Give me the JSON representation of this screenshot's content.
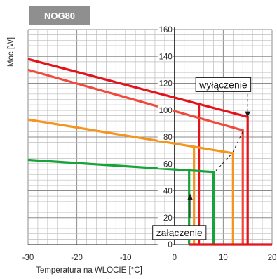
{
  "chart_data": {
    "type": "line",
    "title": "NOG80",
    "xlabel": "Temperatura na WLOCIE  [°C]",
    "ylabel": "Moc [W]",
    "xlim": [
      -30,
      20
    ],
    "ylim": [
      0,
      160
    ],
    "xticks": [
      -30,
      -20,
      -10,
      0,
      10,
      20
    ],
    "yticks": [
      0,
      20,
      40,
      60,
      80,
      100,
      120,
      140,
      160
    ],
    "xtick_labels": [
      "-30",
      "-20",
      "-10",
      "0",
      "10",
      "20"
    ],
    "ytick_labels": [
      "0",
      "20",
      "40",
      "60",
      "80",
      "100",
      "120",
      "140",
      "160"
    ],
    "grid": true,
    "series": [
      {
        "color": "#e2131a",
        "on": [
          [
            -30,
            138
          ],
          [
            15,
            95
          ]
        ],
        "drop_x": 15,
        "lower_drop_x": 5,
        "lower_drop_y": 104
      },
      {
        "color": "#ef4a3c",
        "on": [
          [
            -30,
            130
          ],
          [
            14,
            85
          ]
        ],
        "drop_x": 14
      },
      {
        "color": "#f5951f",
        "on": [
          [
            -30,
            93
          ],
          [
            12,
            68
          ]
        ],
        "drop_x": 12,
        "lower_drop_x": 4,
        "lower_drop_y": 73
      },
      {
        "color": "#16a33a",
        "on": [
          [
            -30,
            63
          ],
          [
            8,
            54
          ]
        ],
        "drop_x": 8,
        "lower_drop_x": 3,
        "lower_drop_y": 56
      }
    ],
    "annotations": [
      {
        "text": "wyłączenie",
        "x": 10,
        "y": 119
      },
      {
        "text": "załączenie",
        "x": 1,
        "y": 9
      }
    ]
  }
}
